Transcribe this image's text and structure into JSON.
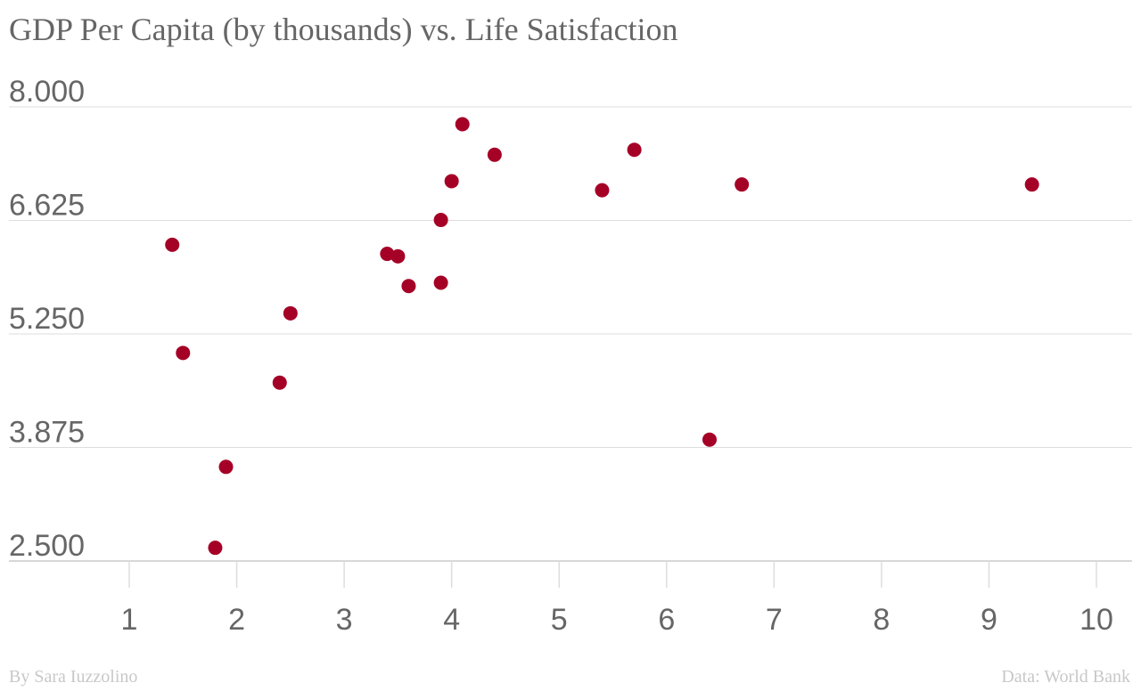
{
  "chart_data": {
    "type": "scatter",
    "title": "GDP Per Capita (by thousands) vs. Life Satisfaction",
    "xlabel": "",
    "ylabel": "",
    "xlim": [
      1,
      10
    ],
    "ylim": [
      2.5,
      8.0
    ],
    "x_ticks": [
      1,
      2,
      3,
      4,
      5,
      6,
      7,
      8,
      9,
      10
    ],
    "y_ticks": [
      2.5,
      3.875,
      5.25,
      6.625,
      8.0
    ],
    "y_tick_labels": [
      "2.500",
      "3.875",
      "5.250",
      "6.625",
      "8.000"
    ],
    "grid": "horizontal",
    "point_color": "#a50026",
    "points": [
      {
        "x": 1.4,
        "y": 6.33
      },
      {
        "x": 1.5,
        "y": 5.02
      },
      {
        "x": 1.8,
        "y": 2.66
      },
      {
        "x": 1.9,
        "y": 3.64
      },
      {
        "x": 2.4,
        "y": 4.66
      },
      {
        "x": 2.5,
        "y": 5.5
      },
      {
        "x": 3.4,
        "y": 6.22
      },
      {
        "x": 3.5,
        "y": 6.19
      },
      {
        "x": 3.6,
        "y": 5.83
      },
      {
        "x": 3.9,
        "y": 5.87
      },
      {
        "x": 3.9,
        "y": 6.63
      },
      {
        "x": 4.0,
        "y": 7.1
      },
      {
        "x": 4.1,
        "y": 7.79
      },
      {
        "x": 4.4,
        "y": 7.42
      },
      {
        "x": 5.4,
        "y": 6.99
      },
      {
        "x": 5.7,
        "y": 7.48
      },
      {
        "x": 6.4,
        "y": 3.97
      },
      {
        "x": 6.7,
        "y": 7.06
      },
      {
        "x": 9.4,
        "y": 7.06
      }
    ]
  },
  "footer": {
    "credit_left": "By Sara Iuzzolino",
    "credit_right": "Data: World Bank"
  }
}
